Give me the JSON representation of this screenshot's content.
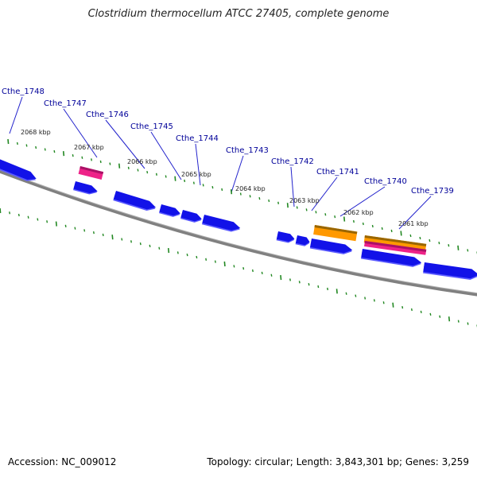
{
  "title": "Clostridium thermocellum ATCC 27405, complete genome",
  "footer": {
    "accession": "Accession: NC_009012",
    "topology": "Topology: circular; Length: 3,843,301 bp; Genes: 3,259"
  },
  "colors": {
    "forward_cds": "#1212e8",
    "forward_cds_shadow": "#5a5aff",
    "reverse_cds": "#1212e8",
    "rna_pink": "#ee2288",
    "rna_orange": "#ff9900",
    "backbone": "#808080",
    "tick": "#228822",
    "label_text": "#000099",
    "leader_line": "#2222cc"
  },
  "scale_ticks": [
    {
      "label": "2068 kbp"
    },
    {
      "label": "2067 kbp"
    },
    {
      "label": "2066 kbp"
    },
    {
      "label": "2065 kbp"
    },
    {
      "label": "2064 kbp"
    },
    {
      "label": "2063 kbp"
    },
    {
      "label": "2062 kbp"
    },
    {
      "label": "2061 kbp"
    }
  ],
  "gene_labels": [
    {
      "name": "Cthe_1748"
    },
    {
      "name": "Cthe_1747"
    },
    {
      "name": "Cthe_1746"
    },
    {
      "name": "Cthe_1745"
    },
    {
      "name": "Cthe_1744"
    },
    {
      "name": "Cthe_1743"
    },
    {
      "name": "Cthe_1742"
    },
    {
      "name": "Cthe_1741"
    },
    {
      "name": "Cthe_1740"
    },
    {
      "name": "Cthe_1739"
    }
  ]
}
